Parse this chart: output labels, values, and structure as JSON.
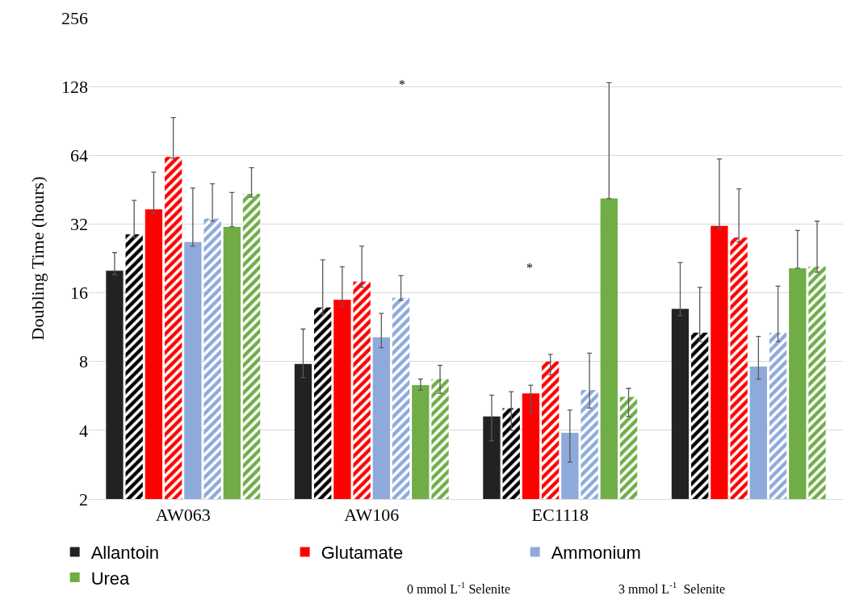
{
  "chart_data": {
    "type": "bar",
    "ylabel": "Doubling Time (hours)",
    "log": "y",
    "categories": [
      "AW063",
      "AW106",
      "EC1118",
      null
    ],
    "ylim": [
      2,
      256
    ],
    "yticks": [
      2,
      4,
      8,
      16,
      32,
      64,
      128,
      256
    ],
    "grid": "y",
    "legend": "bottom",
    "series": [
      {
        "name": "Allantoin",
        "color": "#222222",
        "values": [
          20.0,
          7.8,
          4.6,
          13.6
        ],
        "errors": [
          [
            19.2,
            24
          ],
          [
            6.8,
            11.1
          ],
          [
            3.6,
            5.7
          ],
          [
            12.7,
            21.7
          ]
        ]
      },
      {
        "color": "#000000",
        "values": [
          28.8,
          13.8,
          5.0,
          10.7
        ],
        "errors": [
          [
            28,
            40.6
          ],
          [
            12.9,
            22.3
          ],
          [
            4.0,
            5.9
          ],
          [
            9.8,
            16.9
          ]
        ]
      },
      {
        "name": "Glutamate",
        "color": "#ff0000",
        "values": [
          37.1,
          14.9,
          5.8,
          31.4
        ],
        "errors": [
          [
            35.7,
            54
          ],
          [
            13.9,
            20.8
          ],
          [
            4.8,
            6.3
          ],
          [
            30.4,
            61.7
          ]
        ]
      },
      {
        "color": "#ff0000",
        "values": [
          63,
          17.9,
          8.0,
          27.9
        ],
        "errors": [
          [
            62,
            93.6
          ],
          [
            16.9,
            25.6
          ],
          [
            7.0,
            8.6
          ],
          [
            26.7,
            45.6
          ]
        ]
      },
      {
        "name": "Ammonium",
        "color": "#8eaadb",
        "values": [
          26.7,
          10.2,
          3.9,
          7.6
        ],
        "errors": [
          [
            25.6,
            46
          ],
          [
            9.2,
            13.0
          ],
          [
            2.9,
            4.9
          ],
          [
            6.7,
            10.3
          ]
        ]
      },
      {
        "color": "#8eaadb",
        "values": [
          33.8,
          15.2,
          6.0,
          10.7
        ],
        "errors": [
          [
            33,
            48
          ],
          [
            14.8,
            19.0
          ],
          [
            5.0,
            8.7
          ],
          [
            9.8,
            17.1
          ]
        ]
      },
      {
        "name": "Urea",
        "color": "#70ad47",
        "values": [
          31.1,
          6.3,
          41.4,
          20.5
        ],
        "errors": [
          [
            31.1,
            44
          ],
          [
            6.0,
            6.7
          ],
          [
            41.4,
            133
          ],
          [
            20.5,
            30.0
          ]
        ]
      },
      {
        "color": "#70ad47",
        "values": [
          43.4,
          6.7,
          5.6,
          20.8
        ],
        "errors": [
          [
            42,
            56.5
          ],
          [
            5.8,
            7.7
          ],
          [
            4.6,
            6.1
          ],
          [
            19.7,
            32.9
          ]
        ]
      }
    ],
    "annotations": [
      "*",
      "*",
      "0 mmol L$^{-1}$ Selenite",
      "3 mmol L$^{-1}$  Selenite"
    ]
  }
}
